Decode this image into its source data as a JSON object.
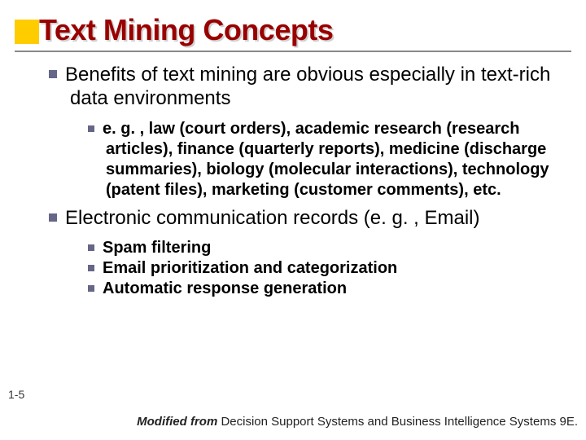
{
  "accent_color": "#ffcc00",
  "title_color": "#990000",
  "bullet_color": "#666688",
  "title": "Text Mining Concepts",
  "page_number": "1-5",
  "bullets": {
    "b1": "Benefits of text mining are obvious especially in text-rich data environments",
    "b1_1": "e. g. , law (court orders), academic research (research articles), finance (quarterly reports), medicine (discharge summaries), biology (molecular interactions), technology (patent files), marketing (customer comments), etc.",
    "b2": "Electronic communication records (e. g. , Email)",
    "b2_1": "Spam filtering",
    "b2_2": "Email prioritization and categorization",
    "b2_3": "Automatic response generation"
  },
  "footer": {
    "prefix": "Modified from ",
    "rest": "Decision Support Systems and Business Intelligence Systems 9E."
  }
}
